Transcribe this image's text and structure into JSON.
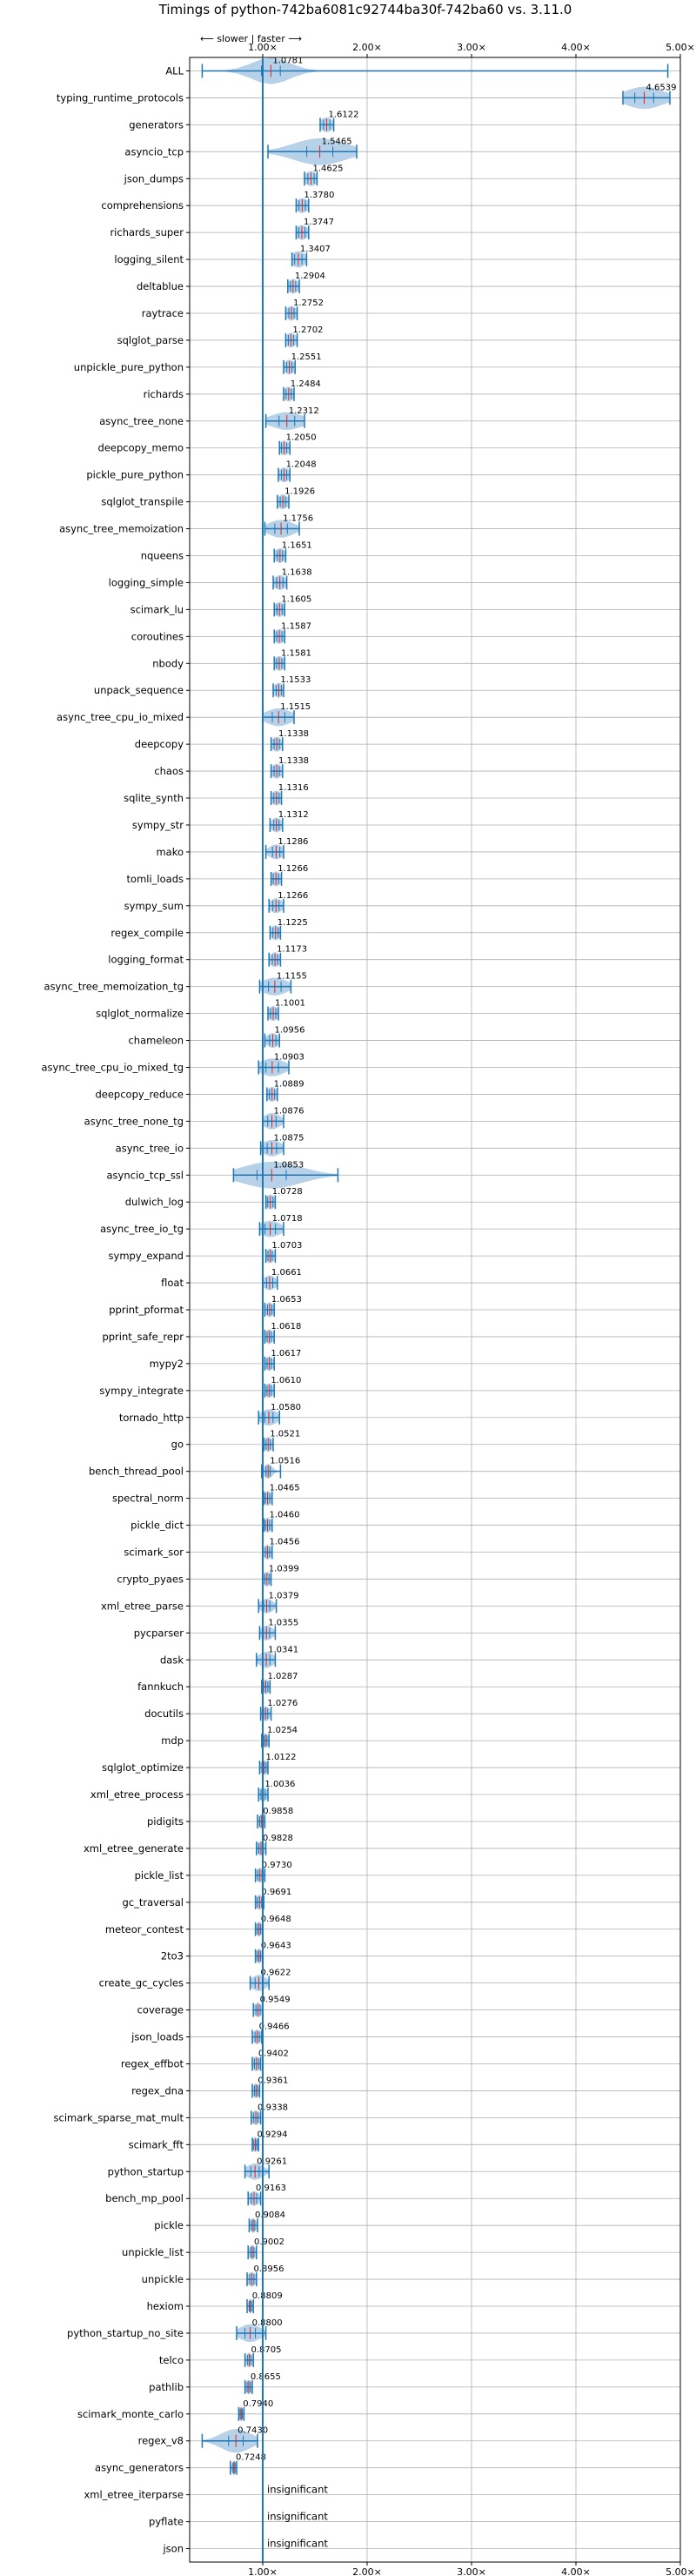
{
  "chart_data": {
    "type": "violin",
    "title": "Timings of python-742ba6081c92744ba30f-742ba60 vs. 3.11.0",
    "direction_note": "⟵ slower | faster ⟶",
    "xlim": [
      0.3,
      5.0
    ],
    "xticks": [
      1.0,
      2.0,
      3.0,
      4.0,
      5.0
    ],
    "xtick_labels": [
      "1.00×",
      "2.00×",
      "3.00×",
      "4.00×",
      "5.00×"
    ],
    "reference_line": 1.0,
    "insignificant_label": "insignificant",
    "colors": {
      "violin": "#1f77b4",
      "violin_fill": "#aac9e4",
      "median_mark": "#d62728",
      "grid": "#b0b0b0"
    },
    "benchmarks": [
      {
        "name": "ALL",
        "value": 1.0781,
        "label": "1.0781",
        "min": 0.42,
        "max": 4.88,
        "spread": 0.18,
        "height": 0.9,
        "sig": true
      },
      {
        "name": "typing_runtime_protocols",
        "value": 4.6539,
        "label": "4.6539",
        "min": 4.45,
        "max": 4.9,
        "spread": 0.18,
        "height": 0.75,
        "sig": true
      },
      {
        "name": "generators",
        "value": 1.6122,
        "label": "1.6122",
        "min": 1.55,
        "max": 1.68,
        "spread": 0.06,
        "height": 0.5,
        "sig": true
      },
      {
        "name": "asyncio_tcp",
        "value": 1.5465,
        "label": "1.5465",
        "min": 1.05,
        "max": 1.9,
        "spread": 0.25,
        "height": 0.9,
        "sig": true
      },
      {
        "name": "json_dumps",
        "value": 1.4625,
        "label": "1.4625",
        "min": 1.4,
        "max": 1.52,
        "spread": 0.06,
        "height": 0.5,
        "sig": true
      },
      {
        "name": "comprehensions",
        "value": 1.378,
        "label": "1.3780",
        "min": 1.32,
        "max": 1.44,
        "spread": 0.06,
        "height": 0.5,
        "sig": true
      },
      {
        "name": "richards_super",
        "value": 1.3747,
        "label": "1.3747",
        "min": 1.32,
        "max": 1.44,
        "spread": 0.06,
        "height": 0.5,
        "sig": true
      },
      {
        "name": "logging_silent",
        "value": 1.3407,
        "label": "1.3407",
        "min": 1.28,
        "max": 1.42,
        "spread": 0.07,
        "height": 0.55,
        "sig": true
      },
      {
        "name": "deltablue",
        "value": 1.2904,
        "label": "1.2904",
        "min": 1.24,
        "max": 1.35,
        "spread": 0.05,
        "height": 0.5,
        "sig": true
      },
      {
        "name": "raytrace",
        "value": 1.2752,
        "label": "1.2752",
        "min": 1.22,
        "max": 1.33,
        "spread": 0.05,
        "height": 0.5,
        "sig": true
      },
      {
        "name": "sqlglot_parse",
        "value": 1.2702,
        "label": "1.2702",
        "min": 1.22,
        "max": 1.33,
        "spread": 0.05,
        "height": 0.5,
        "sig": true
      },
      {
        "name": "unpickle_pure_python",
        "value": 1.2551,
        "label": "1.2551",
        "min": 1.2,
        "max": 1.31,
        "spread": 0.05,
        "height": 0.5,
        "sig": true
      },
      {
        "name": "richards",
        "value": 1.2484,
        "label": "1.2484",
        "min": 1.2,
        "max": 1.3,
        "spread": 0.05,
        "height": 0.5,
        "sig": true
      },
      {
        "name": "async_tree_none",
        "value": 1.2312,
        "label": "1.2312",
        "min": 1.03,
        "max": 1.4,
        "spread": 0.15,
        "height": 0.6,
        "sig": true
      },
      {
        "name": "deepcopy_memo",
        "value": 1.205,
        "label": "1.2050",
        "min": 1.16,
        "max": 1.26,
        "spread": 0.05,
        "height": 0.5,
        "sig": true
      },
      {
        "name": "pickle_pure_python",
        "value": 1.2048,
        "label": "1.2048",
        "min": 1.15,
        "max": 1.26,
        "spread": 0.05,
        "height": 0.5,
        "sig": true
      },
      {
        "name": "sqlglot_transpile",
        "value": 1.1926,
        "label": "1.1926",
        "min": 1.14,
        "max": 1.25,
        "spread": 0.05,
        "height": 0.5,
        "sig": true
      },
      {
        "name": "async_tree_memoization",
        "value": 1.1756,
        "label": "1.1756",
        "min": 1.02,
        "max": 1.35,
        "spread": 0.12,
        "height": 0.6,
        "sig": true
      },
      {
        "name": "nqueens",
        "value": 1.1651,
        "label": "1.1651",
        "min": 1.11,
        "max": 1.22,
        "spread": 0.05,
        "height": 0.5,
        "sig": true
      },
      {
        "name": "logging_simple",
        "value": 1.1638,
        "label": "1.1638",
        "min": 1.1,
        "max": 1.23,
        "spread": 0.06,
        "height": 0.5,
        "sig": true
      },
      {
        "name": "scimark_lu",
        "value": 1.1605,
        "label": "1.1605",
        "min": 1.11,
        "max": 1.21,
        "spread": 0.05,
        "height": 0.5,
        "sig": true
      },
      {
        "name": "coroutines",
        "value": 1.1587,
        "label": "1.1587",
        "min": 1.11,
        "max": 1.21,
        "spread": 0.05,
        "height": 0.5,
        "sig": true
      },
      {
        "name": "nbody",
        "value": 1.1581,
        "label": "1.1581",
        "min": 1.11,
        "max": 1.21,
        "spread": 0.05,
        "height": 0.5,
        "sig": true
      },
      {
        "name": "unpack_sequence",
        "value": 1.1533,
        "label": "1.1533",
        "min": 1.1,
        "max": 1.2,
        "spread": 0.05,
        "height": 0.5,
        "sig": true
      },
      {
        "name": "async_tree_cpu_io_mixed",
        "value": 1.1515,
        "label": "1.1515",
        "min": 1.0,
        "max": 1.3,
        "spread": 0.12,
        "height": 0.6,
        "sig": true
      },
      {
        "name": "deepcopy",
        "value": 1.1338,
        "label": "1.1338",
        "min": 1.08,
        "max": 1.19,
        "spread": 0.05,
        "height": 0.5,
        "sig": true
      },
      {
        "name": "chaos",
        "value": 1.1338,
        "label": "1.1338",
        "min": 1.08,
        "max": 1.19,
        "spread": 0.05,
        "height": 0.5,
        "sig": true
      },
      {
        "name": "sqlite_synth",
        "value": 1.1316,
        "label": "1.1316",
        "min": 1.08,
        "max": 1.18,
        "spread": 0.05,
        "height": 0.5,
        "sig": true
      },
      {
        "name": "sympy_str",
        "value": 1.1312,
        "label": "1.1312",
        "min": 1.07,
        "max": 1.19,
        "spread": 0.05,
        "height": 0.5,
        "sig": true
      },
      {
        "name": "mako",
        "value": 1.1286,
        "label": "1.1286",
        "min": 1.03,
        "max": 1.2,
        "spread": 0.07,
        "height": 0.5,
        "sig": true
      },
      {
        "name": "tomli_loads",
        "value": 1.1266,
        "label": "1.1266",
        "min": 1.08,
        "max": 1.18,
        "spread": 0.05,
        "height": 0.5,
        "sig": true
      },
      {
        "name": "sympy_sum",
        "value": 1.1266,
        "label": "1.1266",
        "min": 1.06,
        "max": 1.2,
        "spread": 0.06,
        "height": 0.5,
        "sig": true
      },
      {
        "name": "regex_compile",
        "value": 1.1225,
        "label": "1.1225",
        "min": 1.07,
        "max": 1.17,
        "spread": 0.05,
        "height": 0.5,
        "sig": true
      },
      {
        "name": "logging_format",
        "value": 1.1173,
        "label": "1.1173",
        "min": 1.06,
        "max": 1.17,
        "spread": 0.05,
        "height": 0.5,
        "sig": true
      },
      {
        "name": "async_tree_memoization_tg",
        "value": 1.1155,
        "label": "1.1155",
        "min": 0.97,
        "max": 1.27,
        "spread": 0.12,
        "height": 0.6,
        "sig": true
      },
      {
        "name": "sqlglot_normalize",
        "value": 1.1001,
        "label": "1.1001",
        "min": 1.05,
        "max": 1.15,
        "spread": 0.05,
        "height": 0.5,
        "sig": true
      },
      {
        "name": "chameleon",
        "value": 1.0956,
        "label": "1.0956",
        "min": 1.02,
        "max": 1.16,
        "spread": 0.06,
        "height": 0.5,
        "sig": true
      },
      {
        "name": "async_tree_cpu_io_mixed_tg",
        "value": 1.0903,
        "label": "1.0903",
        "min": 0.96,
        "max": 1.25,
        "spread": 0.12,
        "height": 0.6,
        "sig": true
      },
      {
        "name": "deepcopy_reduce",
        "value": 1.0889,
        "label": "1.0889",
        "min": 1.04,
        "max": 1.14,
        "spread": 0.05,
        "height": 0.5,
        "sig": true
      },
      {
        "name": "async_tree_none_tg",
        "value": 1.0876,
        "label": "1.0876",
        "min": 1.0,
        "max": 1.2,
        "spread": 0.08,
        "height": 0.55,
        "sig": true
      },
      {
        "name": "async_tree_io",
        "value": 1.0875,
        "label": "1.0875",
        "min": 0.98,
        "max": 1.2,
        "spread": 0.09,
        "height": 0.55,
        "sig": true
      },
      {
        "name": "asyncio_tcp_ssl",
        "value": 1.0853,
        "label": "1.0853",
        "min": 0.72,
        "max": 1.72,
        "spread": 0.28,
        "height": 0.9,
        "sig": true
      },
      {
        "name": "dulwich_log",
        "value": 1.0728,
        "label": "1.0728",
        "min": 1.03,
        "max": 1.12,
        "spread": 0.05,
        "height": 0.5,
        "sig": true
      },
      {
        "name": "async_tree_io_tg",
        "value": 1.0718,
        "label": "1.0718",
        "min": 0.97,
        "max": 1.2,
        "spread": 0.1,
        "height": 0.55,
        "sig": true
      },
      {
        "name": "sympy_expand",
        "value": 1.0703,
        "label": "1.0703",
        "min": 1.03,
        "max": 1.12,
        "spread": 0.04,
        "height": 0.5,
        "sig": true
      },
      {
        "name": "float",
        "value": 1.0661,
        "label": "1.0661",
        "min": 1.0,
        "max": 1.14,
        "spread": 0.06,
        "height": 0.5,
        "sig": true
      },
      {
        "name": "pprint_pformat",
        "value": 1.0653,
        "label": "1.0653",
        "min": 1.02,
        "max": 1.11,
        "spread": 0.04,
        "height": 0.5,
        "sig": true
      },
      {
        "name": "pprint_safe_repr",
        "value": 1.0618,
        "label": "1.0618",
        "min": 1.02,
        "max": 1.11,
        "spread": 0.04,
        "height": 0.5,
        "sig": true
      },
      {
        "name": "mypy2",
        "value": 1.0617,
        "label": "1.0617",
        "min": 1.02,
        "max": 1.11,
        "spread": 0.04,
        "height": 0.5,
        "sig": true
      },
      {
        "name": "sympy_integrate",
        "value": 1.061,
        "label": "1.0610",
        "min": 1.02,
        "max": 1.11,
        "spread": 0.04,
        "height": 0.5,
        "sig": true
      },
      {
        "name": "tornado_http",
        "value": 1.058,
        "label": "1.0580",
        "min": 0.96,
        "max": 1.16,
        "spread": 0.08,
        "height": 0.55,
        "sig": true
      },
      {
        "name": "go",
        "value": 1.0521,
        "label": "1.0521",
        "min": 1.01,
        "max": 1.1,
        "spread": 0.04,
        "height": 0.5,
        "sig": true
      },
      {
        "name": "bench_thread_pool",
        "value": 1.0516,
        "label": "1.0516",
        "min": 0.99,
        "max": 1.17,
        "spread": 0.04,
        "height": 0.5,
        "sig": true
      },
      {
        "name": "spectral_norm",
        "value": 1.0465,
        "label": "1.0465",
        "min": 1.01,
        "max": 1.09,
        "spread": 0.04,
        "height": 0.5,
        "sig": true
      },
      {
        "name": "pickle_dict",
        "value": 1.046,
        "label": "1.0460",
        "min": 1.01,
        "max": 1.09,
        "spread": 0.04,
        "height": 0.5,
        "sig": true
      },
      {
        "name": "scimark_sor",
        "value": 1.0456,
        "label": "1.0456",
        "min": 1.0,
        "max": 1.09,
        "spread": 0.04,
        "height": 0.5,
        "sig": true
      },
      {
        "name": "crypto_pyaes",
        "value": 1.0399,
        "label": "1.0399",
        "min": 1.0,
        "max": 1.08,
        "spread": 0.04,
        "height": 0.5,
        "sig": true
      },
      {
        "name": "xml_etree_parse",
        "value": 1.0379,
        "label": "1.0379",
        "min": 0.96,
        "max": 1.13,
        "spread": 0.06,
        "height": 0.5,
        "sig": true
      },
      {
        "name": "pycparser",
        "value": 1.0355,
        "label": "1.0355",
        "min": 0.97,
        "max": 1.12,
        "spread": 0.06,
        "height": 0.5,
        "sig": true
      },
      {
        "name": "dask",
        "value": 1.0341,
        "label": "1.0341",
        "min": 0.94,
        "max": 1.12,
        "spread": 0.07,
        "height": 0.55,
        "sig": true
      },
      {
        "name": "fannkuch",
        "value": 1.0287,
        "label": "1.0287",
        "min": 0.99,
        "max": 1.07,
        "spread": 0.04,
        "height": 0.5,
        "sig": true
      },
      {
        "name": "docutils",
        "value": 1.0276,
        "label": "1.0276",
        "min": 0.98,
        "max": 1.08,
        "spread": 0.04,
        "height": 0.5,
        "sig": true
      },
      {
        "name": "mdp",
        "value": 1.0254,
        "label": "1.0254",
        "min": 0.99,
        "max": 1.06,
        "spread": 0.03,
        "height": 0.5,
        "sig": true
      },
      {
        "name": "sqlglot_optimize",
        "value": 1.0122,
        "label": "1.0122",
        "min": 0.97,
        "max": 1.05,
        "spread": 0.04,
        "height": 0.5,
        "sig": true
      },
      {
        "name": "xml_etree_process",
        "value": 1.0036,
        "label": "1.0036",
        "min": 0.96,
        "max": 1.05,
        "spread": 0.04,
        "height": 0.5,
        "sig": true
      },
      {
        "name": "pidigits",
        "value": 0.9858,
        "label": "0.9858",
        "min": 0.95,
        "max": 1.02,
        "spread": 0.03,
        "height": 0.5,
        "sig": true
      },
      {
        "name": "xml_etree_generate",
        "value": 0.9828,
        "label": "0.9828",
        "min": 0.94,
        "max": 1.03,
        "spread": 0.04,
        "height": 0.5,
        "sig": true
      },
      {
        "name": "pickle_list",
        "value": 0.973,
        "label": "0.9730",
        "min": 0.93,
        "max": 1.02,
        "spread": 0.04,
        "height": 0.5,
        "sig": true
      },
      {
        "name": "gc_traversal",
        "value": 0.9691,
        "label": "0.9691",
        "min": 0.93,
        "max": 1.01,
        "spread": 0.04,
        "height": 0.5,
        "sig": true
      },
      {
        "name": "meteor_contest",
        "value": 0.9648,
        "label": "0.9648",
        "min": 0.93,
        "max": 1.0,
        "spread": 0.03,
        "height": 0.5,
        "sig": true
      },
      {
        "name": "2to3",
        "value": 0.9643,
        "label": "0.9643",
        "min": 0.93,
        "max": 1.0,
        "spread": 0.03,
        "height": 0.5,
        "sig": true
      },
      {
        "name": "create_gc_cycles",
        "value": 0.9622,
        "label": "0.9622",
        "min": 0.88,
        "max": 1.06,
        "spread": 0.07,
        "height": 0.55,
        "sig": true
      },
      {
        "name": "coverage",
        "value": 0.9549,
        "label": "0.9549",
        "min": 0.91,
        "max": 1.0,
        "spread": 0.04,
        "height": 0.5,
        "sig": true
      },
      {
        "name": "json_loads",
        "value": 0.9466,
        "label": "0.9466",
        "min": 0.9,
        "max": 0.99,
        "spread": 0.04,
        "height": 0.5,
        "sig": true
      },
      {
        "name": "regex_effbot",
        "value": 0.9402,
        "label": "0.9402",
        "min": 0.9,
        "max": 0.98,
        "spread": 0.04,
        "height": 0.5,
        "sig": true
      },
      {
        "name": "regex_dna",
        "value": 0.9361,
        "label": "0.9361",
        "min": 0.9,
        "max": 0.97,
        "spread": 0.03,
        "height": 0.5,
        "sig": true
      },
      {
        "name": "scimark_sparse_mat_mult",
        "value": 0.9338,
        "label": "0.9338",
        "min": 0.89,
        "max": 0.98,
        "spread": 0.04,
        "height": 0.5,
        "sig": true
      },
      {
        "name": "scimark_fft",
        "value": 0.9294,
        "label": "0.9294",
        "min": 0.9,
        "max": 0.96,
        "spread": 0.03,
        "height": 0.5,
        "sig": true
      },
      {
        "name": "python_startup",
        "value": 0.9261,
        "label": "0.9261",
        "min": 0.83,
        "max": 1.06,
        "spread": 0.08,
        "height": 0.55,
        "sig": true
      },
      {
        "name": "bench_mp_pool",
        "value": 0.9163,
        "label": "0.9163",
        "min": 0.86,
        "max": 0.98,
        "spread": 0.05,
        "height": 0.5,
        "sig": true
      },
      {
        "name": "pickle",
        "value": 0.9084,
        "label": "0.9084",
        "min": 0.87,
        "max": 0.95,
        "spread": 0.03,
        "height": 0.5,
        "sig": true
      },
      {
        "name": "unpickle_list",
        "value": 0.9002,
        "label": "0.9002",
        "min": 0.86,
        "max": 0.94,
        "spread": 0.03,
        "height": 0.5,
        "sig": true
      },
      {
        "name": "unpickle",
        "value": 0.8956,
        "label": "0.8956",
        "min": 0.85,
        "max": 0.94,
        "spread": 0.04,
        "height": 0.5,
        "sig": true
      },
      {
        "name": "hexiom",
        "value": 0.8809,
        "label": "0.8809",
        "min": 0.85,
        "max": 0.91,
        "spread": 0.02,
        "height": 0.5,
        "sig": true
      },
      {
        "name": "python_startup_no_site",
        "value": 0.88,
        "label": "0.8800",
        "min": 0.75,
        "max": 1.03,
        "spread": 0.1,
        "height": 0.6,
        "sig": true
      },
      {
        "name": "telco",
        "value": 0.8705,
        "label": "0.8705",
        "min": 0.83,
        "max": 0.91,
        "spread": 0.03,
        "height": 0.5,
        "sig": true
      },
      {
        "name": "pathlib",
        "value": 0.8655,
        "label": "0.8655",
        "min": 0.83,
        "max": 0.9,
        "spread": 0.03,
        "height": 0.5,
        "sig": true
      },
      {
        "name": "scimark_monte_carlo",
        "value": 0.794,
        "label": "0.7940",
        "min": 0.77,
        "max": 0.82,
        "spread": 0.02,
        "height": 0.5,
        "sig": true
      },
      {
        "name": "regex_v8",
        "value": 0.743,
        "label": "0.7430",
        "min": 0.42,
        "max": 0.95,
        "spread": 0.14,
        "height": 0.8,
        "sig": true
      },
      {
        "name": "async_generators",
        "value": 0.7248,
        "label": "0.7248",
        "min": 0.69,
        "max": 0.75,
        "spread": 0.02,
        "height": 0.5,
        "sig": true
      },
      {
        "name": "xml_etree_iterparse",
        "value": null,
        "label": "",
        "sig": false
      },
      {
        "name": "pyflate",
        "value": null,
        "label": "",
        "sig": false
      },
      {
        "name": "json",
        "value": null,
        "label": "",
        "sig": false
      }
    ]
  }
}
